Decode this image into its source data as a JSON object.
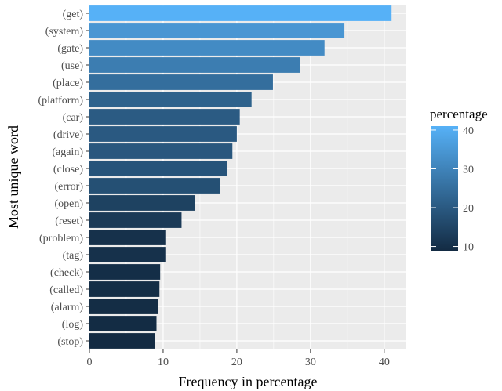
{
  "chart_data": {
    "type": "bar",
    "orientation": "horizontal",
    "xlabel": "Frequency in percentage",
    "ylabel": "Most unique word",
    "xlim": [
      0,
      43
    ],
    "xticks": [
      0,
      10,
      20,
      30,
      40
    ],
    "grid": true,
    "categories": [
      "(get)",
      "(system)",
      "(gate)",
      "(use)",
      "(place)",
      "(platform)",
      "(car)",
      "(drive)",
      "(again)",
      "(close)",
      "(error)",
      "(open)",
      "(reset)",
      "(problem)",
      "(tag)",
      "(check)",
      "(called)",
      "(alarm)",
      "(log)",
      "(stop)"
    ],
    "values": [
      41.0,
      34.6,
      31.9,
      28.6,
      24.9,
      22.0,
      20.4,
      20.0,
      19.4,
      18.7,
      17.7,
      14.3,
      12.5,
      10.3,
      10.3,
      9.6,
      9.5,
      9.3,
      9.1,
      8.9
    ],
    "legend": {
      "title": "percentage",
      "position": "right",
      "ticks": [
        10,
        20,
        30,
        40
      ],
      "range": [
        8.9,
        41.0
      ],
      "color_low": "#132b43",
      "color_high": "#56b1f7"
    },
    "panel_background": "#ebebeb",
    "grid_color": "#ffffff"
  }
}
